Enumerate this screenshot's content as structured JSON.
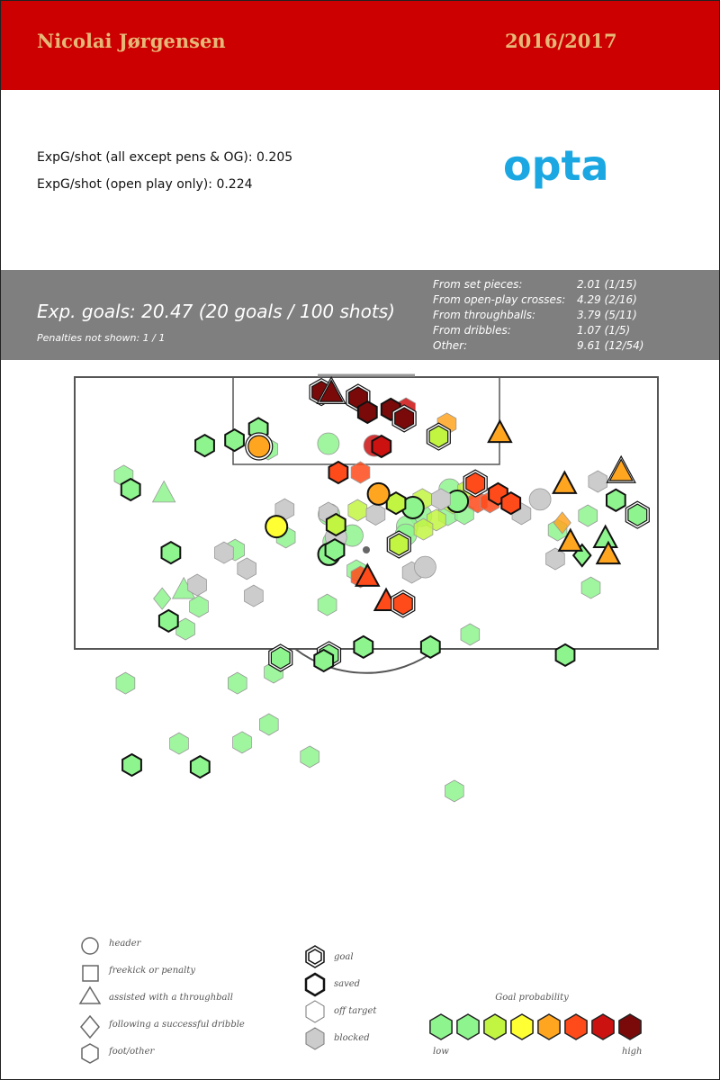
{
  "header": {
    "player": "Nicolai Jørgensen",
    "season": "2016/2017",
    "background_color": "#cc0000",
    "text_color": "#e6b878"
  },
  "stats": {
    "xg_per_shot_all": "ExpG/shot (all except pens & OG): 0.205",
    "xg_per_shot_open_play": "ExpG/shot (open play only): 0.224"
  },
  "logo": {
    "text": "opta",
    "color": "#1ba7e2"
  },
  "summary": {
    "exp_goals": "Exp. goals: 20.47 (20 goals / 100 shots)",
    "penalties": "Penalties not shown: 1 / 1",
    "breakdown": [
      {
        "label": "From set pieces:",
        "value": "2.01 (1/15)"
      },
      {
        "label": "From open-play crosses:",
        "value": "4.29 (2/16)"
      },
      {
        "label": "From throughballs:",
        "value": "3.79 (5/11)"
      },
      {
        "label": "From dribbles:",
        "value": "1.07 (1/5)"
      },
      {
        "label": "Other:",
        "value": "9.61 (12/54)"
      }
    ]
  },
  "legend": {
    "shapes": [
      {
        "shape": "circle",
        "label": "header"
      },
      {
        "shape": "square",
        "label": "freekick or penalty"
      },
      {
        "shape": "triangle",
        "label": "assisted with a throughball"
      },
      {
        "shape": "diamond",
        "label": "following a successful dribble"
      },
      {
        "shape": "hexagon",
        "label": "foot/other"
      }
    ],
    "outcomes": [
      {
        "outcome": "goal",
        "label": "goal"
      },
      {
        "outcome": "saved",
        "label": "saved"
      },
      {
        "outcome": "off",
        "label": "off target"
      },
      {
        "outcome": "blocked",
        "label": "blocked"
      }
    ],
    "probability_title": "Goal probability",
    "probability_low": "low",
    "probability_high": "high",
    "probability_colors": [
      "#8ef58e",
      "#8ef58e",
      "#c2f542",
      "#ffff33",
      "#ffa520",
      "#ff4a1a",
      "#cc1111",
      "#7a0a0a"
    ]
  },
  "chart_data": {
    "type": "scatter",
    "description_units": "Shot locations as percent of pitch width (x, 0 = left touchline side of drawn box, 100 = right) and distance from goal line in percent of drawn half (y, 0 = goal line). Probability index 0 (low) to 7 (high).",
    "outcome_colors": {
      "blocked": "#cccccc"
    },
    "shots": [
      {
        "x": 42.3,
        "y": 5.5,
        "shape": "hexagon",
        "prob": 7,
        "outcome": "goal"
      },
      {
        "x": 44.0,
        "y": 6.0,
        "shape": "triangle",
        "prob": 7,
        "outcome": "goal"
      },
      {
        "x": 48.6,
        "y": 7.6,
        "shape": "hexagon",
        "prob": 7,
        "outcome": "goal"
      },
      {
        "x": 50.2,
        "y": 12.9,
        "shape": "hexagon",
        "prob": 7,
        "outcome": "saved"
      },
      {
        "x": 54.2,
        "y": 11.9,
        "shape": "hexagon",
        "prob": 7,
        "outcome": "saved"
      },
      {
        "x": 56.8,
        "y": 11.6,
        "shape": "hexagon",
        "prob": 6,
        "outcome": "off"
      },
      {
        "x": 56.5,
        "y": 15.2,
        "shape": "hexagon",
        "prob": 7,
        "outcome": "goal"
      },
      {
        "x": 63.8,
        "y": 17.2,
        "shape": "hexagon",
        "prob": 4,
        "outcome": "off"
      },
      {
        "x": 62.4,
        "y": 21.9,
        "shape": "hexagon",
        "prob": 2,
        "outcome": "goal"
      },
      {
        "x": 72.9,
        "y": 20.9,
        "shape": "triangle",
        "prob": 4,
        "outcome": "saved"
      },
      {
        "x": 31.6,
        "y": 25.5,
        "shape": "circle",
        "prob": 4,
        "outcome": "goal"
      },
      {
        "x": 43.5,
        "y": 24.5,
        "shape": "circle",
        "prob": 0,
        "outcome": "off"
      },
      {
        "x": 51.4,
        "y": 25.2,
        "shape": "circle",
        "prob": 6,
        "outcome": "off"
      },
      {
        "x": 52.6,
        "y": 25.5,
        "shape": "hexagon",
        "prob": 6,
        "outcome": "saved"
      },
      {
        "x": 31.5,
        "y": 19.0,
        "shape": "hexagon",
        "prob": 0,
        "outcome": "saved"
      },
      {
        "x": 22.3,
        "y": 25.2,
        "shape": "hexagon",
        "prob": 0,
        "outcome": "saved"
      },
      {
        "x": 27.4,
        "y": 23.2,
        "shape": "hexagon",
        "prob": 0,
        "outcome": "saved"
      },
      {
        "x": 33.2,
        "y": 26.5,
        "shape": "hexagon",
        "prob": 0,
        "outcome": "off"
      },
      {
        "x": 45.2,
        "y": 35.1,
        "shape": "hexagon",
        "prob": 5,
        "outcome": "saved"
      },
      {
        "x": 49.0,
        "y": 35.1,
        "shape": "hexagon",
        "prob": 5,
        "outcome": "off"
      },
      {
        "x": 68.7,
        "y": 39.1,
        "shape": "hexagon",
        "prob": 5,
        "outcome": "goal"
      },
      {
        "x": 72.6,
        "y": 43.0,
        "shape": "hexagon",
        "prob": 5,
        "outcome": "saved"
      },
      {
        "x": 64.3,
        "y": 41.4,
        "shape": "circle",
        "prob": 1,
        "outcome": "off"
      },
      {
        "x": 67.3,
        "y": 41.7,
        "shape": "hexagon",
        "prob": 2,
        "outcome": "off"
      },
      {
        "x": 69.1,
        "y": 46.0,
        "shape": "hexagon",
        "prob": 5,
        "outcome": "off"
      },
      {
        "x": 64.9,
        "y": 46.4,
        "shape": "hexagon",
        "prob": 2,
        "outcome": "off"
      },
      {
        "x": 64.0,
        "y": 50.7,
        "shape": "hexagon",
        "prob": 0,
        "outcome": "off"
      },
      {
        "x": 66.8,
        "y": 50.3,
        "shape": "hexagon",
        "prob": 0,
        "outcome": "off"
      },
      {
        "x": 59.6,
        "y": 45.0,
        "shape": "hexagon",
        "prob": 2,
        "outcome": "off"
      },
      {
        "x": 58.0,
        "y": 48.0,
        "shape": "circle",
        "prob": 0,
        "outcome": "saved"
      },
      {
        "x": 59.4,
        "y": 51.0,
        "shape": "circle",
        "prob": 0,
        "outcome": "off"
      },
      {
        "x": 62.0,
        "y": 52.6,
        "shape": "hexagon",
        "prob": 2,
        "outcome": "off"
      },
      {
        "x": 71.2,
        "y": 46.0,
        "shape": "hexagon",
        "prob": 5,
        "outcome": "off"
      },
      {
        "x": 74.8,
        "y": 46.4,
        "shape": "hexagon",
        "prob": 5,
        "outcome": "saved"
      },
      {
        "x": 79.8,
        "y": 45.0,
        "shape": "circle",
        "prob": 0,
        "outcome": "blocked"
      },
      {
        "x": 76.6,
        "y": 50.3,
        "shape": "hexagon",
        "prob": 0,
        "outcome": "blocked"
      },
      {
        "x": 52.1,
        "y": 43.0,
        "shape": "circle",
        "prob": 4,
        "outcome": "saved"
      },
      {
        "x": 55.1,
        "y": 46.4,
        "shape": "hexagon",
        "prob": 2,
        "outcome": "saved"
      },
      {
        "x": 62.8,
        "y": 45.0,
        "shape": "hexagon",
        "prob": 4,
        "outcome": "blocked"
      },
      {
        "x": 65.6,
        "y": 45.7,
        "shape": "circle",
        "prob": 0,
        "outcome": "saved"
      },
      {
        "x": 84.0,
        "y": 39.7,
        "shape": "triangle",
        "prob": 4,
        "outcome": "saved"
      },
      {
        "x": 89.7,
        "y": 38.4,
        "shape": "hexagon",
        "prob": 0,
        "outcome": "blocked"
      },
      {
        "x": 93.7,
        "y": 35.1,
        "shape": "triangle",
        "prob": 4,
        "outcome": "goal"
      },
      {
        "x": 92.8,
        "y": 45.3,
        "shape": "hexagon",
        "prob": 0,
        "outcome": "saved"
      },
      {
        "x": 96.5,
        "y": 50.7,
        "shape": "hexagon",
        "prob": 0,
        "outcome": "goal"
      },
      {
        "x": 88.0,
        "y": 51.0,
        "shape": "hexagon",
        "prob": 0,
        "outcome": "off"
      },
      {
        "x": 83.6,
        "y": 53.6,
        "shape": "diamond",
        "prob": 4,
        "outcome": "off"
      },
      {
        "x": 82.8,
        "y": 56.3,
        "shape": "hexagon",
        "prob": 0,
        "outcome": "off"
      },
      {
        "x": 85.0,
        "y": 60.9,
        "shape": "triangle",
        "prob": 4,
        "outcome": "saved"
      },
      {
        "x": 91.0,
        "y": 59.6,
        "shape": "triangle",
        "prob": 0,
        "outcome": "saved"
      },
      {
        "x": 87.0,
        "y": 65.6,
        "shape": "diamond",
        "prob": 0,
        "outcome": "saved"
      },
      {
        "x": 91.5,
        "y": 65.6,
        "shape": "triangle",
        "prob": 4,
        "outcome": "saved"
      },
      {
        "x": 82.4,
        "y": 66.9,
        "shape": "hexagon",
        "prob": 0,
        "outcome": "blocked"
      },
      {
        "x": 88.5,
        "y": 77.5,
        "shape": "hexagon",
        "prob": 0,
        "outcome": "off"
      },
      {
        "x": 43.5,
        "y": 50.0,
        "shape": "hexagon",
        "prob": 0,
        "outcome": "blocked"
      },
      {
        "x": 51.6,
        "y": 50.5,
        "shape": "hexagon",
        "prob": 1,
        "outcome": "blocked"
      },
      {
        "x": 44.8,
        "y": 54.3,
        "shape": "hexagon",
        "prob": 2,
        "outcome": "saved"
      },
      {
        "x": 43.6,
        "y": 50.5,
        "shape": "circle",
        "prob": 1,
        "outcome": "off"
      },
      {
        "x": 48.5,
        "y": 49.0,
        "shape": "hexagon",
        "prob": 2,
        "outcome": "off"
      },
      {
        "x": 57.0,
        "y": 55.0,
        "shape": "circle",
        "prob": 0,
        "outcome": "off"
      },
      {
        "x": 59.8,
        "y": 56.0,
        "shape": "hexagon",
        "prob": 2,
        "outcome": "off"
      },
      {
        "x": 56.8,
        "y": 58.0,
        "shape": "circle",
        "prob": 0,
        "outcome": "off"
      },
      {
        "x": 47.6,
        "y": 58.3,
        "shape": "circle",
        "prob": 0,
        "outcome": "off"
      },
      {
        "x": 34.6,
        "y": 55.0,
        "shape": "circle",
        "prob": 3,
        "outcome": "saved"
      },
      {
        "x": 36.2,
        "y": 58.9,
        "shape": "hexagon",
        "prob": 0,
        "outcome": "off"
      },
      {
        "x": 36.0,
        "y": 48.7,
        "shape": "hexagon",
        "prob": 0,
        "outcome": "blocked"
      },
      {
        "x": 44.8,
        "y": 58.9,
        "shape": "circle",
        "prob": 0,
        "outcome": "blocked"
      },
      {
        "x": 44.4,
        "y": 60.6,
        "shape": "circle",
        "prob": 0,
        "outcome": "off"
      },
      {
        "x": 43.6,
        "y": 65.2,
        "shape": "circle",
        "prob": 0,
        "outcome": "saved"
      },
      {
        "x": 44.6,
        "y": 63.6,
        "shape": "hexagon",
        "prob": 0,
        "outcome": "saved"
      },
      {
        "x": 55.6,
        "y": 61.6,
        "shape": "hexagon",
        "prob": 2,
        "outcome": "goal"
      },
      {
        "x": 57.8,
        "y": 71.9,
        "shape": "hexagon",
        "prob": 0,
        "outcome": "blocked"
      },
      {
        "x": 60.1,
        "y": 69.9,
        "shape": "circle",
        "prob": 0,
        "outcome": "blocked"
      },
      {
        "x": 48.3,
        "y": 71.2,
        "shape": "hexagon",
        "prob": 0,
        "outcome": "off"
      },
      {
        "x": 49.0,
        "y": 73.5,
        "shape": "hexagon",
        "prob": 5,
        "outcome": "off"
      },
      {
        "x": 50.2,
        "y": 73.8,
        "shape": "triangle",
        "prob": 5,
        "outcome": "saved"
      },
      {
        "x": 53.4,
        "y": 82.8,
        "shape": "triangle",
        "prob": 5,
        "outcome": "saved"
      },
      {
        "x": 56.3,
        "y": 83.4,
        "shape": "hexagon",
        "prob": 5,
        "outcome": "goal"
      },
      {
        "x": 43.3,
        "y": 83.8,
        "shape": "hexagon",
        "prob": 0,
        "outcome": "off"
      },
      {
        "x": 25.6,
        "y": 64.6,
        "shape": "hexagon",
        "prob": 0,
        "outcome": "blocked"
      },
      {
        "x": 29.5,
        "y": 70.5,
        "shape": "hexagon",
        "prob": 0,
        "outcome": "blocked"
      },
      {
        "x": 27.5,
        "y": 63.6,
        "shape": "hexagon",
        "prob": 0,
        "outcome": "off"
      },
      {
        "x": 30.7,
        "y": 80.5,
        "shape": "hexagon",
        "prob": 0,
        "outcome": "blocked"
      },
      {
        "x": 16.5,
        "y": 64.6,
        "shape": "hexagon",
        "prob": 0,
        "outcome": "saved"
      },
      {
        "x": 21.0,
        "y": 76.5,
        "shape": "hexagon",
        "prob": 0,
        "outcome": "blocked"
      },
      {
        "x": 18.7,
        "y": 78.5,
        "shape": "triangle",
        "prob": 0,
        "outcome": "off"
      },
      {
        "x": 15.0,
        "y": 81.5,
        "shape": "diamond",
        "prob": 0,
        "outcome": "off"
      },
      {
        "x": 21.3,
        "y": 84.4,
        "shape": "hexagon",
        "prob": 0,
        "outcome": "off"
      },
      {
        "x": 16.1,
        "y": 89.7,
        "shape": "hexagon",
        "prob": 0,
        "outcome": "saved"
      },
      {
        "x": 19.0,
        "y": 92.7,
        "shape": "hexagon",
        "prob": 0,
        "outcome": "off"
      },
      {
        "x": 8.4,
        "y": 36.4,
        "shape": "hexagon",
        "prob": 0,
        "outcome": "off"
      },
      {
        "x": 9.6,
        "y": 41.4,
        "shape": "hexagon",
        "prob": 0,
        "outcome": "saved"
      },
      {
        "x": 15.3,
        "y": 43.0,
        "shape": "triangle",
        "prob": 0,
        "outcome": "off"
      },
      {
        "x": 35.3,
        "y": 103.3,
        "shape": "hexagon",
        "prob": 0,
        "outcome": "goal"
      },
      {
        "x": 43.6,
        "y": 102.3,
        "shape": "hexagon",
        "prob": 0,
        "outcome": "goal"
      },
      {
        "x": 49.5,
        "y": 99.3,
        "shape": "hexagon",
        "prob": 0,
        "outcome": "saved"
      },
      {
        "x": 61.0,
        "y": 99.3,
        "shape": "hexagon",
        "prob": 0,
        "outcome": "saved"
      },
      {
        "x": 67.8,
        "y": 94.7,
        "shape": "hexagon",
        "prob": 0,
        "outcome": "off"
      },
      {
        "x": 84.1,
        "y": 102.3,
        "shape": "hexagon",
        "prob": 0,
        "outcome": "saved"
      },
      {
        "x": 34.1,
        "y": 108.6,
        "shape": "hexagon",
        "prob": 0,
        "outcome": "off"
      },
      {
        "x": 42.7,
        "y": 104.3,
        "shape": "hexagon",
        "prob": 0,
        "outcome": "saved"
      },
      {
        "x": 27.9,
        "y": 112.6,
        "shape": "hexagon",
        "prob": 0,
        "outcome": "off"
      },
      {
        "x": 8.7,
        "y": 112.6,
        "shape": "hexagon",
        "prob": 0,
        "outcome": "off"
      },
      {
        "x": 33.3,
        "y": 127.8,
        "shape": "hexagon",
        "prob": 0,
        "outcome": "off"
      },
      {
        "x": 28.7,
        "y": 134.4,
        "shape": "hexagon",
        "prob": 0,
        "outcome": "off"
      },
      {
        "x": 17.9,
        "y": 134.8,
        "shape": "hexagon",
        "prob": 0,
        "outcome": "off"
      },
      {
        "x": 40.3,
        "y": 139.7,
        "shape": "hexagon",
        "prob": 0,
        "outcome": "off"
      },
      {
        "x": 9.8,
        "y": 142.7,
        "shape": "hexagon",
        "prob": 0,
        "outcome": "saved"
      },
      {
        "x": 21.5,
        "y": 143.4,
        "shape": "hexagon",
        "prob": 0,
        "outcome": "saved"
      },
      {
        "x": 65.1,
        "y": 152.3,
        "shape": "hexagon",
        "prob": 0,
        "outcome": "off"
      }
    ]
  }
}
